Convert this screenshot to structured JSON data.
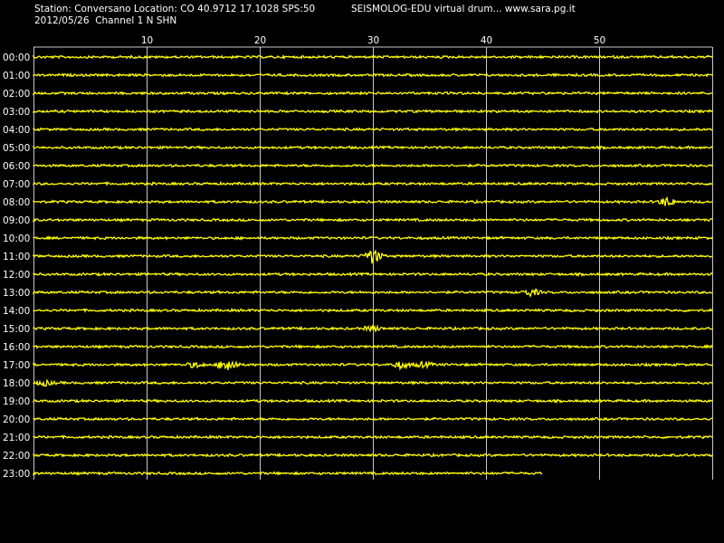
{
  "header": {
    "station_line": "Station: Conversano Location: CO 40.9712 17.1028 SPS:50",
    "brand_line": "SEISMOLOG-EDU virtual drum... www.sara.pg.it",
    "date_line": "2012/05/26  Channel 1 N SHN"
  },
  "colors": {
    "background": "#000000",
    "trace": "#ffff00",
    "grid": "#c8c8c8",
    "text": "#ffffff"
  },
  "chart_data": {
    "type": "line",
    "title": "",
    "xlabel": "",
    "ylabel": "",
    "xlim": [
      0,
      60
    ],
    "x_ticks": [
      10,
      20,
      30,
      40,
      50
    ],
    "grid": true,
    "rows": [
      "00:00",
      "01:00",
      "02:00",
      "03:00",
      "04:00",
      "05:00",
      "06:00",
      "07:00",
      "08:00",
      "09:00",
      "10:00",
      "11:00",
      "12:00",
      "13:00",
      "14:00",
      "15:00",
      "16:00",
      "17:00",
      "18:00",
      "19:00",
      "20:00",
      "21:00",
      "22:00",
      "23:00"
    ],
    "last_row_end_minute": 45,
    "events": [
      {
        "row": "08:00",
        "minute": 56,
        "amplitude": 0.5
      },
      {
        "row": "11:00",
        "minute": 30,
        "amplitude": 0.9
      },
      {
        "row": "13:00",
        "minute": 44,
        "amplitude": 0.4
      },
      {
        "row": "15:00",
        "minute": 30,
        "amplitude": 0.3
      },
      {
        "row": "17:00",
        "minute": 14.3,
        "amplitude": 0.3
      },
      {
        "row": "17:00",
        "minute": 17.2,
        "amplitude": 0.9
      },
      {
        "row": "17:00",
        "minute": 32.5,
        "amplitude": 0.4
      },
      {
        "row": "17:00",
        "minute": 34.5,
        "amplitude": 0.3
      },
      {
        "row": "18:00",
        "minute": 1,
        "amplitude": 0.3
      }
    ]
  }
}
